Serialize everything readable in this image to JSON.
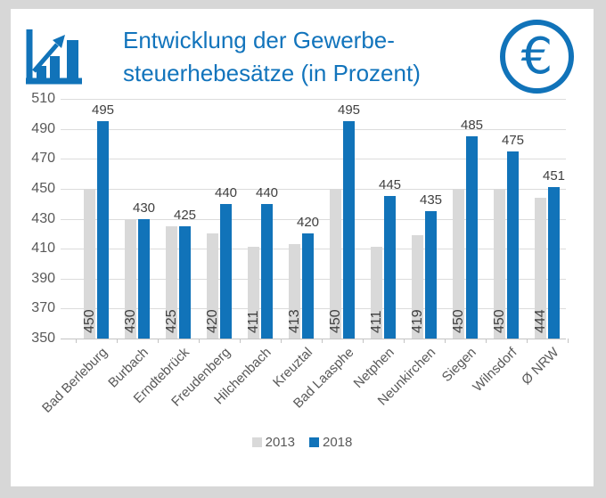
{
  "window": {
    "background": "#d7d7d7",
    "card_background": "#ffffff"
  },
  "header": {
    "title_line1": "Entwicklung der Gewerbe-",
    "title_line2": "steuerhebesätze (in Prozent)",
    "title_color": "#1274BC",
    "chart_icon": "bar-chart-rising-icon",
    "euro_icon": "euro-circle-icon",
    "euro_symbol": "€"
  },
  "colors": {
    "accent_blue": "#1173B9",
    "bar_gray": "#D9D9D9",
    "gridline": "#DCDCDC",
    "axis_line": "#C3C3C3",
    "tick_text": "#595959",
    "value_text": "#404040"
  },
  "chart_data": {
    "type": "bar",
    "title": "Entwicklung der Gewerbesteuerhebesätze (in Prozent)",
    "categories": [
      "Bad Berleburg",
      "Burbach",
      "Erndtebrück",
      "Freudenberg",
      "Hilchenbach",
      "Kreuztal",
      "Bad Laasphe",
      "Netphen",
      "Neunkirchen",
      "Siegen",
      "Wilnsdorf",
      "Ø NRW"
    ],
    "series": [
      {
        "name": "2013",
        "color": "#D9D9D9",
        "values": [
          450,
          430,
          425,
          420,
          411,
          413,
          450,
          411,
          419,
          450,
          450,
          444
        ],
        "value_label_style": "inside-base-rotated"
      },
      {
        "name": "2018",
        "color": "#1173B9",
        "values": [
          495,
          430,
          425,
          440,
          440,
          420,
          495,
          445,
          435,
          485,
          475,
          451
        ],
        "value_label_style": "above-bar"
      }
    ],
    "ylim": [
      350,
      510
    ],
    "yticks": [
      350,
      370,
      390,
      410,
      430,
      450,
      470,
      490,
      510
    ],
    "grid": true,
    "legend_position": "bottom",
    "xlabel": "",
    "ylabel": ""
  }
}
